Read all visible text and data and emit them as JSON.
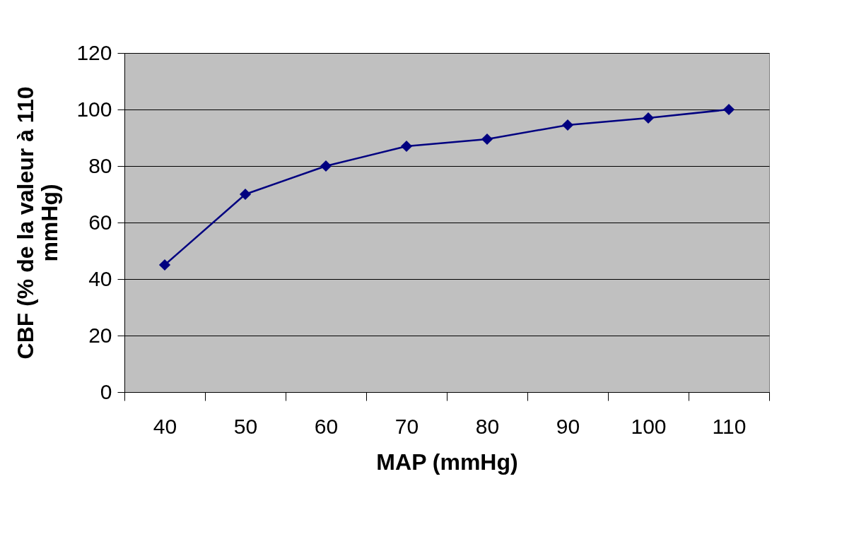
{
  "chart_data": {
    "type": "line",
    "xlabel": "MAP (mmHg)",
    "ylabel": "CBF (% de la valeur à 110 mmHg)",
    "categories": [
      "40",
      "50",
      "60",
      "70",
      "80",
      "90",
      "100",
      "110"
    ],
    "series": [
      {
        "color": "#000080",
        "values": [
          45,
          70,
          80,
          87,
          89.5,
          94.5,
          97,
          100
        ]
      }
    ],
    "ylim": [
      0,
      120
    ],
    "yticks": [
      0,
      20,
      40,
      60,
      80,
      100,
      120
    ],
    "grid": "y",
    "marker": "diamond",
    "line_style": "solid"
  }
}
